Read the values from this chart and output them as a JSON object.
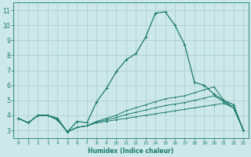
{
  "xlabel": "Humidex (Indice chaleur)",
  "bg_color": "#cce8e8",
  "grid_color": "#aacccc",
  "line_color": "#1a7a6e",
  "xlim": [
    -0.5,
    23.5
  ],
  "ylim": [
    2.5,
    11.5
  ],
  "xticks": [
    0,
    1,
    2,
    3,
    4,
    5,
    6,
    7,
    8,
    9,
    10,
    11,
    12,
    13,
    14,
    15,
    16,
    17,
    18,
    19,
    20,
    21,
    22,
    23
  ],
  "yticks": [
    3,
    4,
    5,
    6,
    7,
    8,
    9,
    10,
    11
  ],
  "series": [
    {
      "x": [
        0,
        1,
        2,
        3,
        4,
        5,
        6,
        7,
        8,
        9,
        10,
        11,
        12,
        13,
        14,
        15,
        16,
        17,
        18,
        19,
        20,
        21,
        22,
        23
      ],
      "y": [
        3.8,
        3.5,
        4.0,
        4.0,
        3.8,
        2.9,
        3.6,
        3.5,
        4.9,
        5.8,
        6.9,
        7.7,
        8.1,
        9.2,
        10.8,
        10.9,
        10.0,
        8.7,
        6.2,
        6.0,
        5.4,
        5.0,
        4.7,
        3.0
      ]
    },
    {
      "x": [
        0,
        1,
        2,
        3,
        4,
        5,
        6,
        7,
        8,
        9,
        10,
        11,
        12,
        13,
        14,
        15,
        16,
        17,
        18,
        19,
        20,
        21,
        22,
        23
      ],
      "y": [
        3.8,
        3.5,
        4.0,
        4.0,
        3.7,
        2.9,
        3.2,
        3.3,
        3.5,
        3.6,
        3.7,
        3.8,
        3.9,
        4.0,
        4.1,
        4.2,
        4.3,
        4.4,
        4.5,
        4.6,
        4.7,
        4.8,
        4.5,
        3.0
      ]
    },
    {
      "x": [
        0,
        1,
        2,
        3,
        4,
        5,
        6,
        7,
        8,
        9,
        10,
        11,
        12,
        13,
        14,
        15,
        16,
        17,
        18,
        19,
        20,
        21,
        22,
        23
      ],
      "y": [
        3.8,
        3.5,
        4.0,
        4.0,
        3.7,
        2.9,
        3.2,
        3.3,
        3.6,
        3.8,
        4.0,
        4.3,
        4.5,
        4.7,
        4.9,
        5.1,
        5.2,
        5.3,
        5.5,
        5.7,
        5.9,
        5.0,
        4.5,
        3.0
      ]
    },
    {
      "x": [
        0,
        1,
        2,
        3,
        4,
        5,
        6,
        7,
        8,
        9,
        10,
        11,
        12,
        13,
        14,
        15,
        16,
        17,
        18,
        19,
        20,
        21,
        22,
        23
      ],
      "y": [
        3.8,
        3.5,
        4.0,
        4.0,
        3.7,
        2.9,
        3.2,
        3.3,
        3.55,
        3.7,
        3.85,
        4.05,
        4.2,
        4.35,
        4.5,
        4.65,
        4.75,
        4.85,
        5.0,
        5.15,
        5.3,
        4.9,
        4.5,
        3.0
      ]
    }
  ]
}
